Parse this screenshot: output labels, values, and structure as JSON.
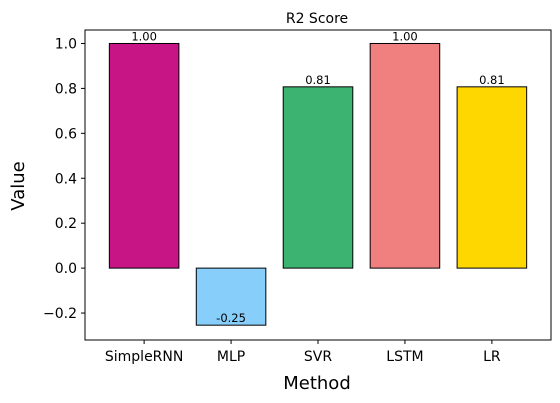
{
  "chart_data": {
    "type": "bar",
    "title": "R2 Score",
    "xlabel": "Method",
    "ylabel": "Value",
    "categories": [
      "SimpleRNN",
      "MLP",
      "SVR",
      "LSTM",
      "LR"
    ],
    "values": [
      1.0,
      -0.254,
      0.807,
      1.0,
      0.807
    ],
    "value_labels": [
      "1.00",
      "-0.25",
      "0.81",
      "1.00",
      "0.81"
    ],
    "colors": [
      "#c71585",
      "#87cefa",
      "#3cb371",
      "#f08080",
      "#ffd700"
    ],
    "edge_color": "#000000",
    "ylim": [
      -0.32,
      1.06
    ],
    "yticks": [
      -0.2,
      0.0,
      0.2,
      0.4,
      0.6,
      0.8,
      1.0
    ],
    "ytick_labels": [
      "−0.2",
      "0.0",
      "0.2",
      "0.4",
      "0.6",
      "0.8",
      "1.0"
    ],
    "grid": false,
    "legend": "none"
  }
}
